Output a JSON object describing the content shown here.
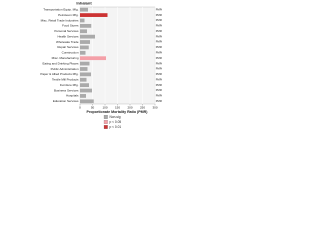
{
  "chart_data": {
    "type": "bar",
    "title": "Inhalant",
    "x_label": "Proportionate Mortality Ratio (PMR)",
    "categories": [
      "Transportation Equip. Mfg.",
      "Petroleum Mfg.",
      "Misc. Retail Trade Industries",
      "Food Stores",
      "Personal Services",
      "Health Services",
      "Wholesale Trade",
      "Repair Services",
      "Construction",
      "Misc. Manufacturing",
      "Eating and Drinking Places",
      "Public Administration",
      "Paper & Allied Products Mfg.",
      "Textile Mill Products",
      "Furniture Mfg.",
      "Business Services",
      "Hospitals",
      "Education Services"
    ],
    "values": [
      32,
      110,
      18,
      45,
      28,
      60,
      40,
      35,
      22,
      104,
      38,
      30,
      44,
      26,
      36,
      48,
      24,
      55
    ],
    "value_labels": [
      "PMR=32",
      "PMR=110",
      "PMR=18",
      "PMR=45",
      "PMR=28",
      "PMR=60",
      "PMR=40",
      "PMR=35",
      "PMR=22",
      "PMR=104",
      "PMR=38",
      "PMR=30",
      "PMR=44",
      "PMR=26",
      "PMR=36",
      "PMR=48",
      "PMR=24",
      "PMR=55"
    ],
    "bar_colors": [
      "#aaaaaa",
      "#cc3333",
      "#aaaaaa",
      "#aaaaaa",
      "#aaaaaa",
      "#aaaaaa",
      "#aaaaaa",
      "#aaaaaa",
      "#aaaaaa",
      "#f4a0a8",
      "#aaaaaa",
      "#aaaaaa",
      "#aaaaaa",
      "#aaaaaa",
      "#aaaaaa",
      "#aaaaaa",
      "#aaaaaa",
      "#aaaaaa"
    ],
    "xlim": [
      0,
      300
    ],
    "xticks": [
      0,
      50,
      100,
      150,
      200,
      250,
      300
    ],
    "grid": true,
    "legend": [
      {
        "name": "Non-sig",
        "color": "#aaaaaa"
      },
      {
        "name": "p < 0.05",
        "color": "#f4a0a8"
      },
      {
        "name": "p < 0.01",
        "color": "#cc3333"
      }
    ]
  }
}
